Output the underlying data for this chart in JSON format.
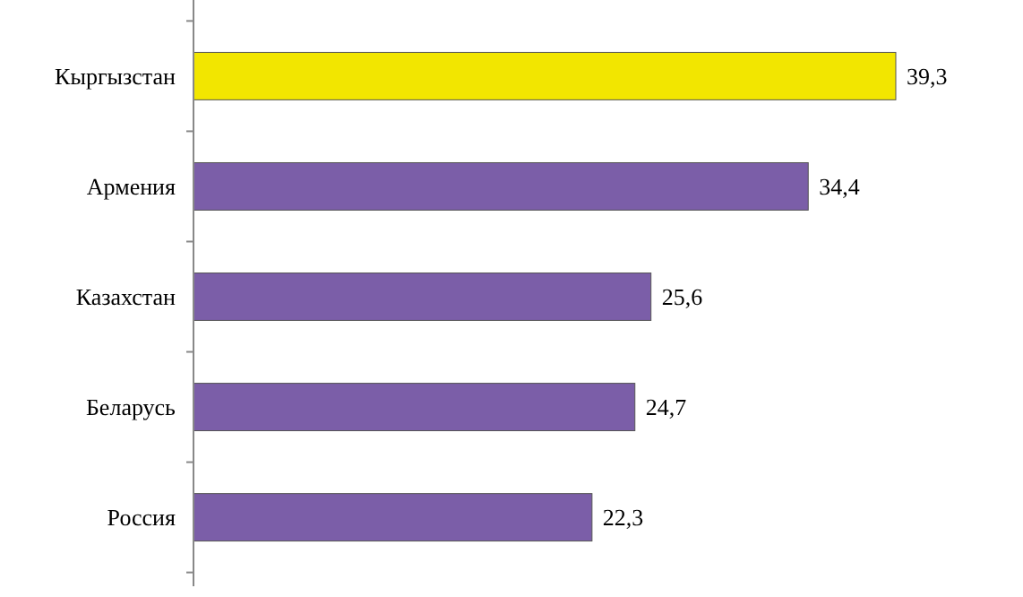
{
  "chart_data": {
    "type": "bar",
    "orientation": "horizontal",
    "categories": [
      "Кыргызстан",
      "Армения",
      "Казахстан",
      "Беларусь",
      "Россия"
    ],
    "values": [
      39.3,
      34.4,
      25.6,
      24.7,
      22.3
    ],
    "colors": [
      "#f2e600",
      "#7b5ea8",
      "#7b5ea8",
      "#7b5ea8",
      "#7b5ea8"
    ],
    "value_labels": [
      "39,3",
      "34,4",
      "25,6",
      "24,7",
      "22,3"
    ],
    "tick_labels": "y"
  }
}
